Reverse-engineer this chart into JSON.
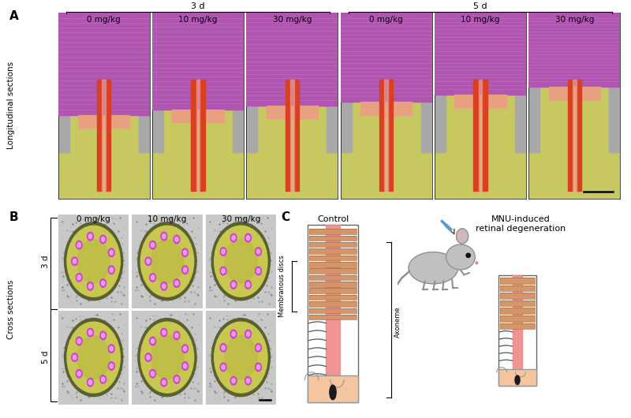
{
  "panel_A_label": "A",
  "panel_B_label": "B",
  "panel_C_label": "C",
  "group1_label": "3 d",
  "group2_label": "5 d",
  "doses": [
    "0 mg/kg",
    "10 mg/kg",
    "30 mg/kg"
  ],
  "doses_5d": [
    "0 mg/kg",
    "10 mg/kg",
    "30 mg/kg"
  ],
  "longitudinal_label": "Longitudinal sections",
  "cross_label": "Cross sections",
  "row_labels_B": [
    "3 d",
    "5 d"
  ],
  "control_label": "Control",
  "mnu_label": "MNU-induced\nretinal degeneration",
  "membranous_discs_label": "Membranous discs",
  "axoneme_label": "Axoneme",
  "background_color": "#ffffff",
  "disc_fill_color": "#d4956a",
  "disc_edge_color": "#c07840",
  "axoneme_color": "#f08080",
  "cell_body_color": "#f5c5a0",
  "mouse_color": "#b0b0b0",
  "syringe_color": "#4488cc",
  "font_size_panel": 11,
  "font_size_dose": 7.5,
  "font_size_group": 8,
  "font_size_axis": 7.5,
  "font_size_diagram": 8
}
